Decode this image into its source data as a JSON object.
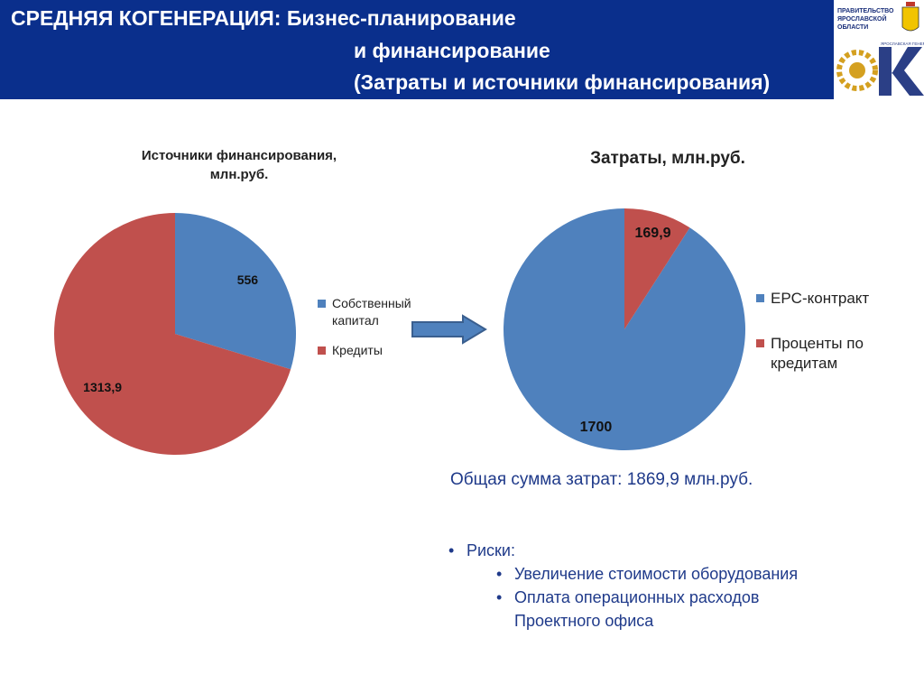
{
  "header": {
    "title_line1_bold": "СРЕДНЯЯ КОГЕНЕРАЦИЯ:",
    "title_line1_rest": "Бизнес-планирование",
    "title_line2": "и финансирование",
    "title_line3": "(Затраты и источники финансирования)"
  },
  "logo": {
    "govt_text": "ПРАВИТЕЛЬСТВО ЯРОСЛАВСКОЙ ОБЛАСТИ",
    "company_text": "ЯРОСЛАВСКАЯ ГЕНЕРИРУЮЩАЯ КОМПАНИЯ"
  },
  "colors": {
    "header_bg": "#0a2f8c",
    "blue": "#4f81bd",
    "red": "#c0504d",
    "text_blue": "#1f3a8a"
  },
  "chart_data": [
    {
      "type": "pie",
      "title": "Источники финансирования, млн.руб.",
      "title_line1": "Источники финансирования,",
      "title_line2": "млн.руб.",
      "slices": [
        {
          "name": "Собственный капитал",
          "value": 556,
          "label": "556",
          "color": "#4f81bd"
        },
        {
          "name": "Кредиты",
          "value": 1313.9,
          "label": "1313,9",
          "color": "#c0504d"
        }
      ],
      "legend_labels": [
        "Собственный",
        "капитал",
        "Кредиты"
      ],
      "legend": "right"
    },
    {
      "type": "pie",
      "title": "Затраты, млн.руб.",
      "slices": [
        {
          "name": "EPC-контракт",
          "value": 1700,
          "label": "1700",
          "color": "#4f81bd"
        },
        {
          "name": "Проценты по кредитам",
          "value": 169.9,
          "label": "169,9",
          "color": "#c0504d"
        }
      ],
      "legend_labels": [
        "EPC-контракт",
        "Проценты по",
        "кредитам"
      ],
      "legend": "right"
    }
  ],
  "summary": {
    "total": "Общая сумма затрат: 1869,9 млн.руб.",
    "risks_label": "Риски:",
    "risk1": "Увеличение стоимости оборудования",
    "risk2_line1": "Оплата операционных расходов",
    "risk2_line2": "Проектного офиса"
  }
}
